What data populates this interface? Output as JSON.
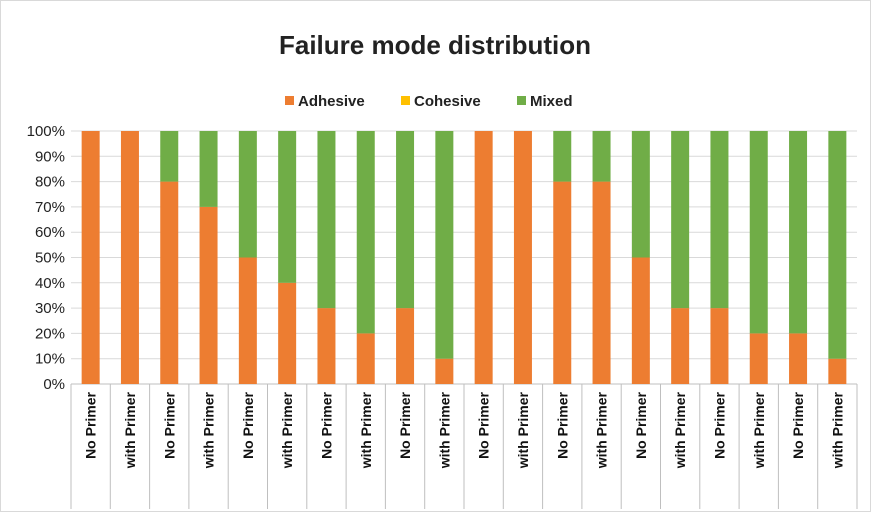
{
  "chart_data": {
    "type": "bar",
    "stacked": true,
    "title": "Failure mode distribution",
    "xlabel": "",
    "ylabel": "",
    "ylim": [
      0,
      100
    ],
    "yticks": [
      "0%",
      "10%",
      "20%",
      "30%",
      "40%",
      "50%",
      "60%",
      "70%",
      "80%",
      "90%",
      "100%"
    ],
    "legend_position": "top-center",
    "grid": true,
    "categories": [
      "No Primer",
      "with Primer",
      "No Primer",
      "with Primer",
      "No Primer",
      "with Primer",
      "No Primer",
      "with Primer",
      "No Primer",
      "with Primer",
      "No Primer",
      "with Primer",
      "No Primer",
      "with Primer",
      "No Primer",
      "with Primer",
      "No Primer",
      "with Primer",
      "No Primer",
      "with Primer"
    ],
    "series": [
      {
        "name": "Adhesive",
        "color": "#ED7D31",
        "values": [
          100,
          100,
          80,
          70,
          50,
          40,
          30,
          20,
          30,
          10,
          100,
          100,
          80,
          80,
          50,
          30,
          30,
          20,
          20,
          10
        ]
      },
      {
        "name": "Cohesive",
        "color": "#FFC000",
        "values": [
          0,
          0,
          0,
          0,
          0,
          0,
          0,
          0,
          0,
          0,
          0,
          0,
          0,
          0,
          0,
          0,
          0,
          0,
          0,
          0
        ]
      },
      {
        "name": "Mixed",
        "color": "#70AD47",
        "values": [
          0,
          0,
          20,
          30,
          50,
          60,
          70,
          80,
          70,
          90,
          0,
          0,
          20,
          20,
          50,
          70,
          70,
          80,
          80,
          90
        ]
      }
    ]
  }
}
